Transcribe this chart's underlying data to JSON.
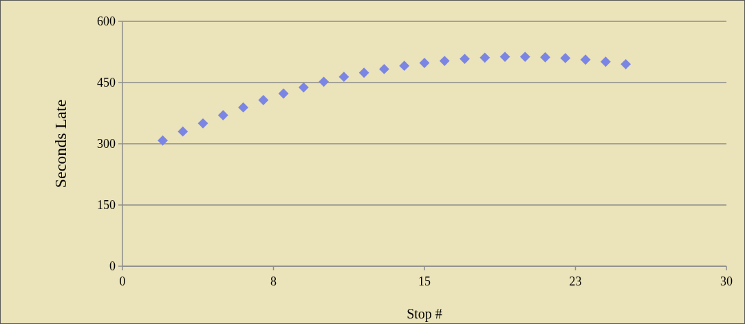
{
  "chart_data": {
    "type": "scatter",
    "xlabel": "Stop #",
    "ylabel": "Seconds Late",
    "x": [
      2,
      3,
      4,
      5,
      6,
      7,
      8,
      9,
      10,
      11,
      12,
      13,
      14,
      15,
      16,
      17,
      18,
      19,
      20,
      21,
      22,
      23,
      24,
      25
    ],
    "values": [
      308,
      330,
      350,
      370,
      389,
      407,
      423,
      438,
      452,
      464,
      474,
      483,
      491,
      498,
      503,
      508,
      511,
      513,
      513,
      512,
      510,
      506,
      501,
      495
    ],
    "color": "#7b85e3",
    "xlim": [
      0,
      30
    ],
    "xticks": [
      0,
      {
        "value": 7.5,
        "label": "8"
      },
      15,
      {
        "value": 22.5,
        "label": "23"
      },
      30
    ],
    "ylim": [
      0,
      600
    ],
    "yticks": [
      0,
      150,
      300,
      450,
      600
    ],
    "grid": "y",
    "marker": "diamond"
  }
}
